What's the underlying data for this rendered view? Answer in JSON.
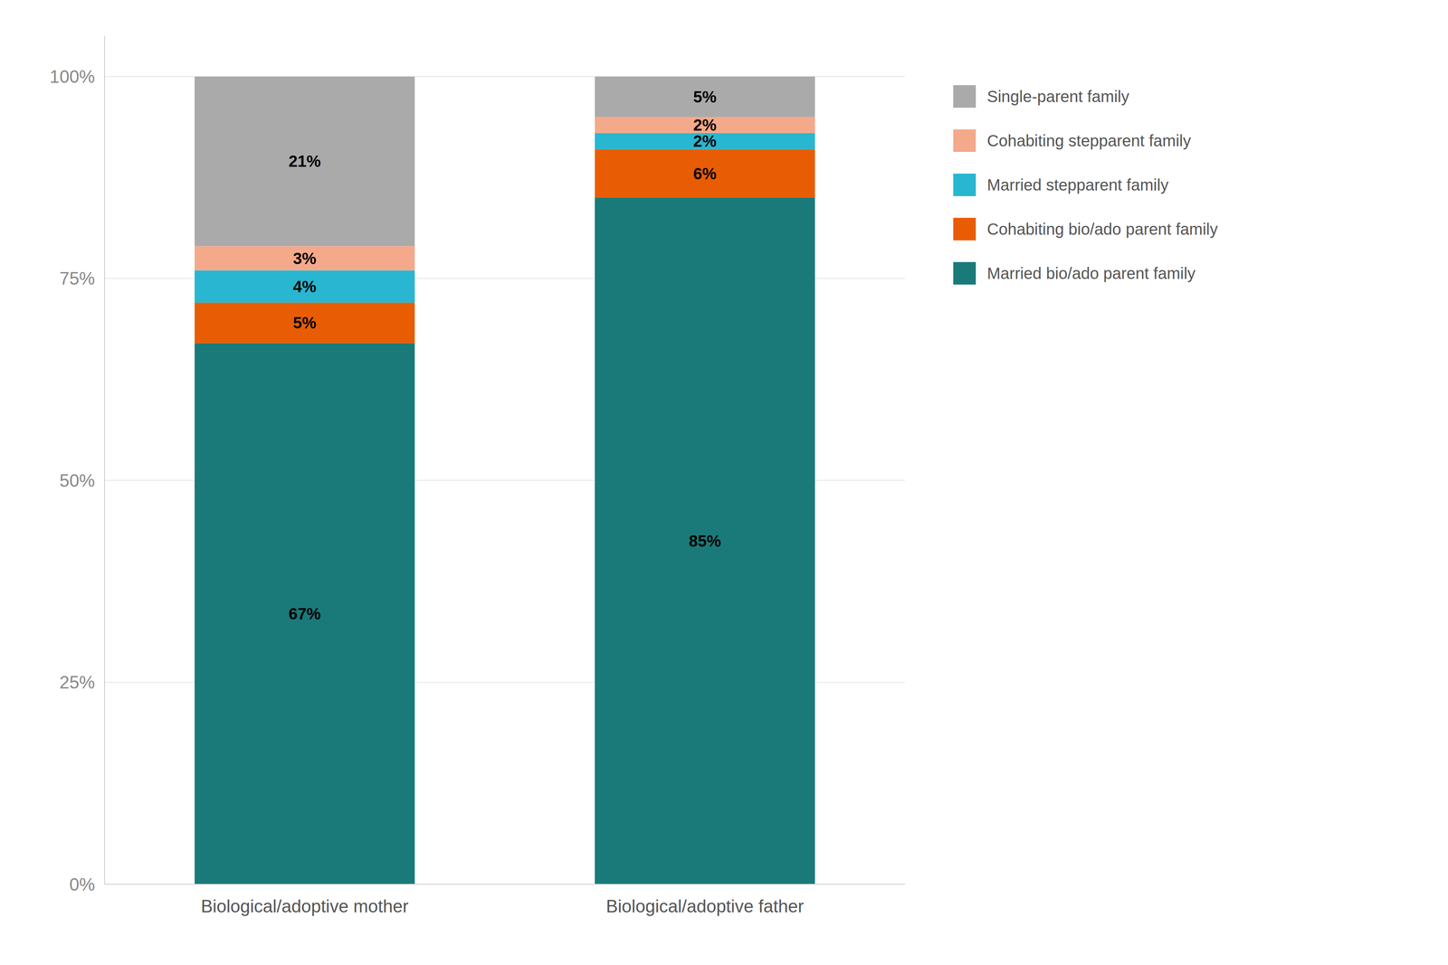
{
  "chart_data": {
    "type": "bar",
    "stacked": true,
    "data_labels": true,
    "grid": true,
    "legend": "right",
    "categories": [
      "Biological/adoptive mother",
      "Biological/adoptive father"
    ],
    "series": [
      {
        "name": "Married bio/ado parent family",
        "color": "#1a7a7a",
        "values": [
          67,
          85
        ],
        "value_labels": [
          "67%",
          "85%"
        ]
      },
      {
        "name": "Cohabiting bio/ado parent family",
        "color": "#e85d04",
        "values": [
          5,
          6
        ],
        "value_labels": [
          "5%",
          "6%"
        ]
      },
      {
        "name": "Married stepparent family",
        "color": "#29b6d0",
        "values": [
          4,
          2
        ],
        "value_labels": [
          "4%",
          "2%"
        ]
      },
      {
        "name": "Cohabiting stepparent family",
        "color": "#f4a98a",
        "values": [
          3,
          2
        ],
        "value_labels": [
          "3%",
          "2%"
        ]
      },
      {
        "name": "Single-parent family",
        "color": "#aaaaaa",
        "values": [
          21,
          5
        ],
        "value_labels": [
          "21%",
          "5%"
        ]
      }
    ],
    "ylim": [
      0,
      105
    ],
    "yticks": [
      {
        "value": 0,
        "label": "0%"
      },
      {
        "value": 25,
        "label": "25%"
      },
      {
        "value": 50,
        "label": "50%"
      },
      {
        "value": 75,
        "label": "75%"
      },
      {
        "value": 100,
        "label": "100%"
      }
    ]
  }
}
